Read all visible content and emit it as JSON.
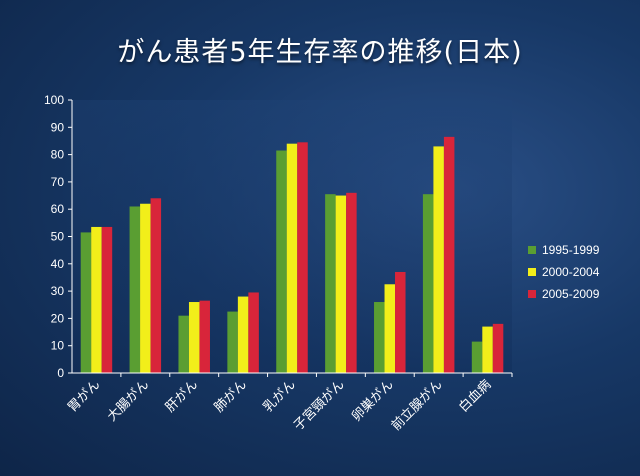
{
  "title": "がん患者5年生存率の推移(日本)",
  "chart_data": {
    "type": "bar",
    "title": "がん患者5年生存率の推移(日本)",
    "categories": [
      "胃がん",
      "大腸がん",
      "肝がん",
      "肺がん",
      "乳がん",
      "子宮頸がん",
      "卵巣がん",
      "前立腺がん",
      "白血病"
    ],
    "series": [
      {
        "name": "1995-1999",
        "color": "#5a9e32",
        "values": [
          51.5,
          61,
          21,
          22.5,
          81.5,
          65.5,
          26,
          65.5,
          11.5
        ]
      },
      {
        "name": "2000-2004",
        "color": "#f2ee1a",
        "values": [
          53.5,
          62,
          26,
          28,
          84,
          65,
          32.5,
          83,
          17
        ]
      },
      {
        "name": "2005-2009",
        "color": "#d8253a",
        "values": [
          53.5,
          64,
          26.5,
          29.5,
          84.5,
          66,
          37,
          86.5,
          18
        ]
      }
    ],
    "ylim": [
      0,
      100
    ],
    "yticks": [
      "0",
      "10",
      "20",
      "30",
      "40",
      "50",
      "60",
      "70",
      "80",
      "90",
      "100"
    ],
    "grid": false,
    "legend": "right"
  }
}
